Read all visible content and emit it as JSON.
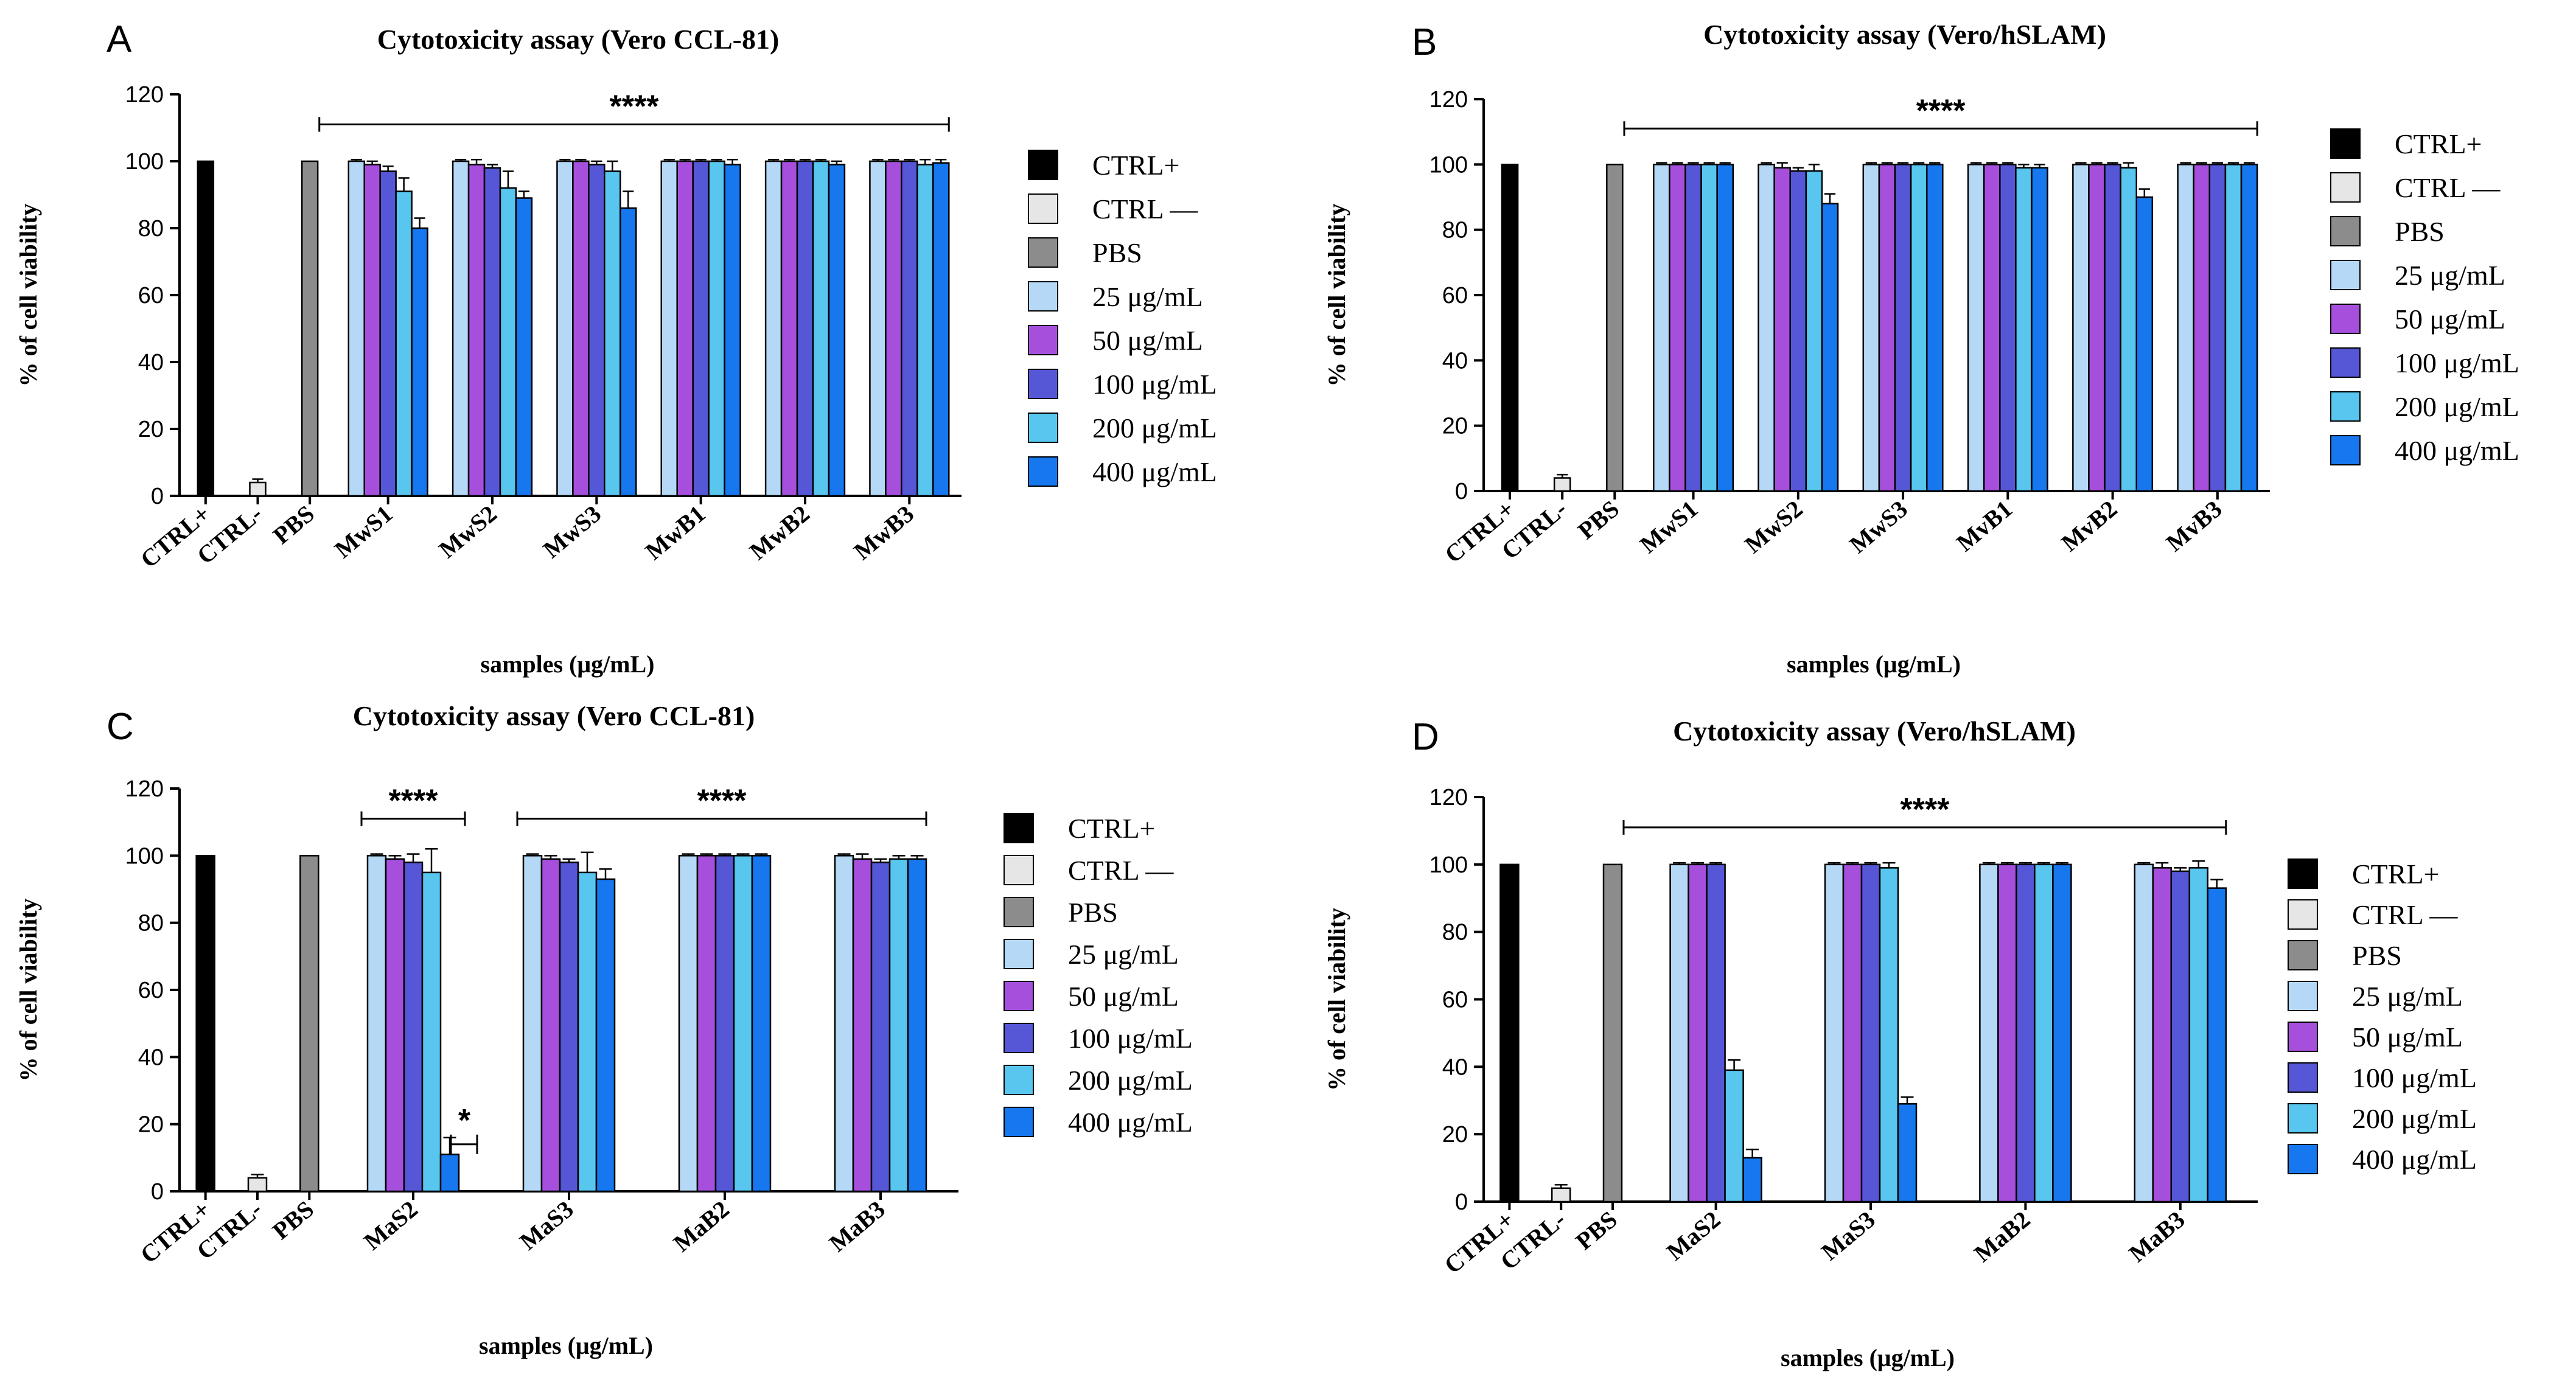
{
  "series_styles": [
    {
      "name": "CTRL+",
      "color": "#000000"
    },
    {
      "name": "CTRL —",
      "color": "#e6e6e6"
    },
    {
      "name": "PBS",
      "color": "#8c8c8c"
    },
    {
      "name": "25 μg/mL",
      "color": "#b4d8f6"
    },
    {
      "name": "50 μg/mL",
      "color": "#a64fdc"
    },
    {
      "name": "100 μg/mL",
      "color": "#5657d6"
    },
    {
      "name": "200 μg/mL",
      "color": "#58c6ee"
    },
    {
      "name": "400 μg/mL",
      "color": "#1677ee"
    }
  ],
  "chart_data": [
    {
      "panel": "A",
      "type": "bar",
      "title": "Cytotoxicity assay (Vero CCL-81)",
      "xlabel": "samples (μg/mL)",
      "ylabel": "% of cell viability",
      "ylim": [
        0,
        120
      ],
      "yticks": [
        0,
        20,
        40,
        60,
        80,
        100,
        120
      ],
      "legend_position": "right",
      "controls": [
        {
          "label": "CTRL+",
          "value": 100,
          "error": 0
        },
        {
          "label": "CTRL-",
          "value": 4,
          "error": 1
        },
        {
          "label": "PBS",
          "value": 100,
          "error": 0
        }
      ],
      "categories": [
        "MwS1",
        "MwS2",
        "MwS3",
        "MwB1",
        "MwB2",
        "MwB3"
      ],
      "series": [
        {
          "name": "25 μg/mL",
          "values": [
            100,
            100,
            100,
            100,
            100,
            100
          ],
          "errors": [
            0.5,
            0.5,
            0.5,
            0.5,
            0.5,
            0.5
          ]
        },
        {
          "name": "50 μg/mL",
          "values": [
            99,
            99,
            100,
            100,
            100,
            100
          ],
          "errors": [
            1,
            1.5,
            0.5,
            0.5,
            0.5,
            0.5
          ]
        },
        {
          "name": "100 μg/mL",
          "values": [
            97,
            98,
            99,
            100,
            100,
            100
          ],
          "errors": [
            1.5,
            1,
            1,
            0.5,
            0.5,
            0.5
          ]
        },
        {
          "name": "200 μg/mL",
          "values": [
            91,
            92,
            97,
            100,
            100,
            99
          ],
          "errors": [
            4,
            5,
            3,
            0.5,
            0.5,
            1.5
          ]
        },
        {
          "name": "400 μg/mL",
          "values": [
            80,
            89,
            86,
            99,
            99,
            99.5
          ],
          "errors": [
            3,
            2,
            5,
            1.5,
            1,
            1
          ]
        }
      ],
      "significance": [
        {
          "label": "****",
          "from": "PBS",
          "to": "MwB3"
        }
      ]
    },
    {
      "panel": "B",
      "type": "bar",
      "title": "Cytotoxicity assay (Vero/hSLAM)",
      "xlabel": "samples (μg/mL)",
      "ylabel": "% of cell viability",
      "ylim": [
        0,
        120
      ],
      "yticks": [
        0,
        20,
        40,
        60,
        80,
        100,
        120
      ],
      "legend_position": "right",
      "controls": [
        {
          "label": "CTRL+",
          "value": 100,
          "error": 0
        },
        {
          "label": "CTRL-",
          "value": 4,
          "error": 1
        },
        {
          "label": "PBS",
          "value": 100,
          "error": 0
        }
      ],
      "categories": [
        "MwS1",
        "MwS2",
        "MwS3",
        "MvB1",
        "MvB2",
        "MvB3"
      ],
      "series": [
        {
          "name": "25 μg/mL",
          "values": [
            100,
            100,
            100,
            100,
            100,
            100
          ],
          "errors": [
            0.5,
            0.5,
            0.5,
            0.5,
            0.5,
            0.5
          ]
        },
        {
          "name": "50 μg/mL",
          "values": [
            100,
            99,
            100,
            100,
            100,
            100
          ],
          "errors": [
            0.5,
            1.5,
            0.5,
            0.5,
            0.5,
            0.5
          ]
        },
        {
          "name": "100 μg/mL",
          "values": [
            100,
            98,
            100,
            100,
            100,
            100
          ],
          "errors": [
            0.5,
            1,
            0.5,
            0.5,
            0.5,
            0.5
          ]
        },
        {
          "name": "200 μg/mL",
          "values": [
            100,
            98,
            100,
            99,
            99,
            100
          ],
          "errors": [
            0.5,
            2,
            0.5,
            1,
            1.5,
            0.5
          ]
        },
        {
          "name": "400 μg/mL",
          "values": [
            100,
            88,
            100,
            99,
            90,
            100
          ],
          "errors": [
            0.5,
            3,
            0.5,
            1,
            2.5,
            0.5
          ]
        }
      ],
      "significance": [
        {
          "label": "****",
          "from": "PBS",
          "to": "MvB3"
        }
      ]
    },
    {
      "panel": "C",
      "type": "bar",
      "title": "Cytotoxicity assay (Vero CCL-81)",
      "xlabel": "samples (μg/mL)",
      "ylabel": "% of cell viability",
      "ylim": [
        0,
        120
      ],
      "yticks": [
        0,
        20,
        40,
        60,
        80,
        100,
        120
      ],
      "legend_position": "right",
      "controls": [
        {
          "label": "CTRL+",
          "value": 100,
          "error": 0
        },
        {
          "label": "CTRL-",
          "value": 4,
          "error": 1
        },
        {
          "label": "PBS",
          "value": 100,
          "error": 0
        }
      ],
      "categories": [
        "MaS2",
        "MaS3",
        "MaB2",
        "MaB3"
      ],
      "series": [
        {
          "name": "25 μg/mL",
          "values": [
            100,
            100,
            100,
            100
          ],
          "errors": [
            0.5,
            0.5,
            0.5,
            0.5
          ]
        },
        {
          "name": "50 μg/mL",
          "values": [
            99,
            99,
            100,
            99
          ],
          "errors": [
            1,
            1,
            0.5,
            1.5
          ]
        },
        {
          "name": "100 μg/mL",
          "values": [
            98,
            98,
            100,
            98
          ],
          "errors": [
            2.5,
            1,
            0.5,
            1
          ]
        },
        {
          "name": "200 μg/mL",
          "values": [
            95,
            95,
            100,
            99
          ],
          "errors": [
            7,
            6,
            0.5,
            1
          ]
        },
        {
          "name": "400 μg/mL",
          "values": [
            11,
            93,
            100,
            99
          ],
          "errors": [
            5,
            3,
            0.5,
            1
          ]
        }
      ],
      "significance": [
        {
          "label": "****",
          "from": "MaS2",
          "to": "MaS2"
        },
        {
          "label": "****",
          "from": "MaS3",
          "to": "MaB3"
        },
        {
          "label": "*",
          "from": "MaS2",
          "to": "MaS2",
          "note": "200 μg/mL vs 400 μg/mL"
        }
      ]
    },
    {
      "panel": "D",
      "type": "bar",
      "title": "Cytotoxicity assay (Vero/hSLAM)",
      "xlabel": "samples (μg/mL)",
      "ylabel": "% of cell viability",
      "ylim": [
        0,
        120
      ],
      "yticks": [
        0,
        20,
        40,
        60,
        80,
        100,
        120
      ],
      "legend_position": "right",
      "controls": [
        {
          "label": "CTRL+",
          "value": 100,
          "error": 0
        },
        {
          "label": "CTRL-",
          "value": 4,
          "error": 1
        },
        {
          "label": "PBS",
          "value": 100,
          "error": 0
        }
      ],
      "categories": [
        "MaS2",
        "MaS3",
        "MaB2",
        "MaB3"
      ],
      "series": [
        {
          "name": "25 μg/mL",
          "values": [
            100,
            100,
            100,
            100
          ],
          "errors": [
            0.5,
            0.5,
            0.5,
            0.5
          ]
        },
        {
          "name": "50 μg/mL",
          "values": [
            100,
            100,
            100,
            99
          ],
          "errors": [
            0.5,
            0.5,
            0.5,
            1.5
          ]
        },
        {
          "name": "100 μg/mL",
          "values": [
            100,
            100,
            100,
            98
          ],
          "errors": [
            0.5,
            0.5,
            0.5,
            1
          ]
        },
        {
          "name": "200 μg/mL",
          "values": [
            39,
            99,
            100,
            99
          ],
          "errors": [
            3,
            1.5,
            0.5,
            2
          ]
        },
        {
          "name": "400 μg/mL",
          "values": [
            13,
            29,
            100,
            93
          ],
          "errors": [
            2.5,
            2,
            0.5,
            2.5
          ]
        }
      ],
      "significance": [
        {
          "label": "****",
          "from": "PBS",
          "to": "MaB3"
        }
      ]
    }
  ]
}
